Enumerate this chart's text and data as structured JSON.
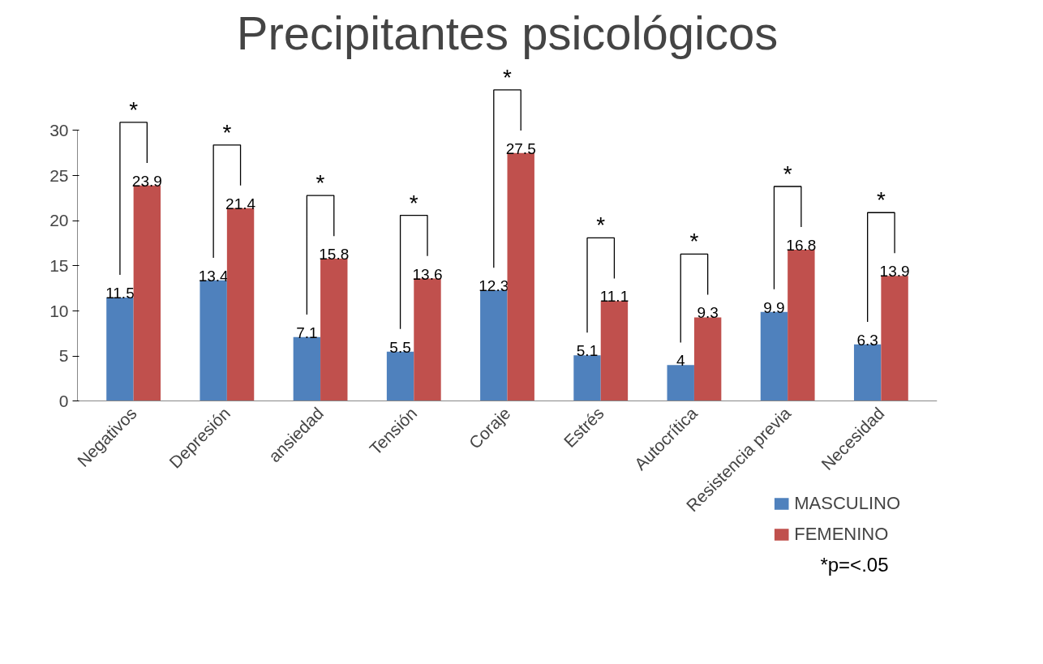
{
  "chart_data": {
    "type": "bar",
    "title": "Precipitantes psicológicos",
    "categories": [
      "Negativos",
      "Depresión",
      "ansiedad",
      "Tensión",
      "Coraje",
      "Estrés",
      "Autocrítica",
      "Resistencia previa",
      "Necesidad"
    ],
    "series": [
      {
        "name": "MASCULINO",
        "color": "#4f81bd",
        "values": [
          11.5,
          13.4,
          7.1,
          5.5,
          12.3,
          5.1,
          4,
          9.9,
          6.3
        ]
      },
      {
        "name": "FEMENINO",
        "color": "#c0504d",
        "values": [
          23.9,
          21.4,
          15.8,
          13.6,
          27.5,
          11.1,
          9.3,
          16.8,
          13.9
        ]
      }
    ],
    "ylim": [
      0,
      30
    ],
    "yticks": [
      0,
      5,
      10,
      15,
      20,
      25,
      30
    ],
    "data_labels": true,
    "grid": false,
    "legend": "bottom right",
    "annotations": [
      "*",
      "*",
      "*",
      "*",
      "*",
      "*",
      "*",
      "*",
      "*",
      "*p=<.05"
    ]
  }
}
